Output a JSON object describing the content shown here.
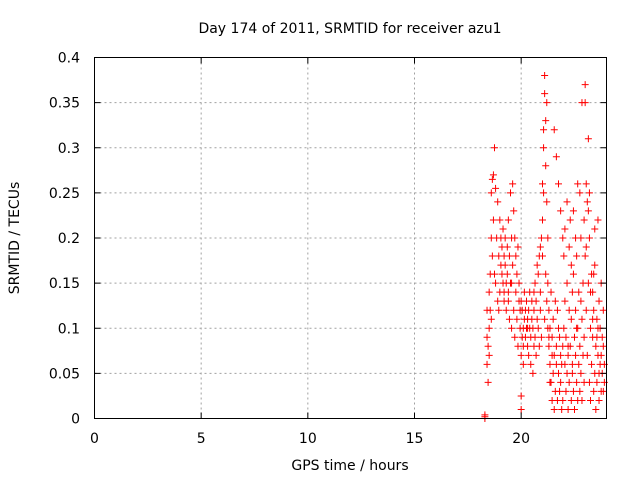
{
  "chart_data": {
    "type": "scatter",
    "title": "Day 174 of 2011, SRMTID for receiver azu1",
    "xlabel": "GPS time / hours",
    "ylabel": "SRMTID / TECUs",
    "xlim": [
      0,
      24
    ],
    "ylim": [
      0,
      0.4
    ],
    "xticks": [
      "0",
      "5",
      "10",
      "15",
      "20"
    ],
    "yticks": [
      "0",
      "0.05",
      "0.1",
      "0.15",
      "0.2",
      "0.25",
      "0.3",
      "0.35",
      "0.4"
    ],
    "grid": true,
    "marker": "plus",
    "color": "#ff0000",
    "series": [
      {
        "name": "azu1",
        "x": [
          18.3,
          18.3,
          18.3,
          18.4,
          18.4,
          18.4,
          18.45,
          18.45,
          18.5,
          18.5,
          18.5,
          18.55,
          18.55,
          18.6,
          18.6,
          18.65,
          18.65,
          18.7,
          18.7,
          18.75,
          18.8,
          18.8,
          18.85,
          18.9,
          18.9,
          18.95,
          19.0,
          19.0,
          19.05,
          19.05,
          19.1,
          19.1,
          19.15,
          19.15,
          19.2,
          19.2,
          19.25,
          19.25,
          19.3,
          19.3,
          19.35,
          19.35,
          19.4,
          19.4,
          19.45,
          19.45,
          19.5,
          19.5,
          19.55,
          19.55,
          19.6,
          19.6,
          19.65,
          19.65,
          19.7,
          19.7,
          19.75,
          19.75,
          19.8,
          19.8,
          19.85,
          19.85,
          19.9,
          19.9,
          19.95,
          19.95,
          18.6,
          18.75,
          18.95,
          19.2,
          19.4,
          19.55,
          20.0,
          20.0,
          20.0,
          20.05,
          20.05,
          20.1,
          20.1,
          20.1,
          20.15,
          20.15,
          20.2,
          20.2,
          20.25,
          20.25,
          20.3,
          20.3,
          20.35,
          20.35,
          20.4,
          20.4,
          20.45,
          20.45,
          20.5,
          20.5,
          20.55,
          20.55,
          20.6,
          20.6,
          20.65,
          20.65,
          20.7,
          20.7,
          20.75,
          20.75,
          20.8,
          20.8,
          20.85,
          20.85,
          20.9,
          20.9,
          20.95,
          20.95,
          20.0,
          20.3,
          20.6,
          20.9,
          21.0,
          21.0,
          21.0,
          21.05,
          21.05,
          21.1,
          21.1,
          21.15,
          21.15,
          21.2,
          21.2,
          21.25,
          21.25,
          21.3,
          21.3,
          21.35,
          21.35,
          21.4,
          21.4,
          21.45,
          21.45,
          21.5,
          21.5,
          21.55,
          21.55,
          21.6,
          21.6,
          21.65,
          21.65,
          21.7,
          21.7,
          21.75,
          21.75,
          21.8,
          21.8,
          21.85,
          21.85,
          21.9,
          21.9,
          21.95,
          21.95,
          21.05,
          21.15,
          21.25,
          21.35,
          21.45,
          21.55,
          21.65,
          21.75,
          21.85,
          21.95,
          21.1,
          21.2,
          21.3,
          22.0,
          22.0,
          22.05,
          22.05,
          22.1,
          22.1,
          22.15,
          22.15,
          22.2,
          22.2,
          22.25,
          22.25,
          22.3,
          22.3,
          22.35,
          22.35,
          22.4,
          22.4,
          22.45,
          22.45,
          22.5,
          22.5,
          22.55,
          22.55,
          22.6,
          22.6,
          22.65,
          22.65,
          22.7,
          22.7,
          22.75,
          22.75,
          22.8,
          22.8,
          22.85,
          22.85,
          22.9,
          22.9,
          22.95,
          22.95,
          22.05,
          22.15,
          22.25,
          22.35,
          22.45,
          22.55,
          22.65,
          22.75,
          22.85,
          22.95,
          22.2,
          22.4,
          22.6,
          22.8,
          23.0,
          23.0,
          23.0,
          23.05,
          23.05,
          23.1,
          23.1,
          23.15,
          23.15,
          23.2,
          23.2,
          23.25,
          23.25,
          23.3,
          23.3,
          23.35,
          23.35,
          23.4,
          23.4,
          23.45,
          23.45,
          23.5,
          23.5,
          23.55,
          23.55,
          23.6,
          23.6,
          23.65,
          23.65,
          23.7,
          23.7,
          23.75,
          23.75,
          23.8,
          23.8,
          23.85,
          23.85,
          23.9,
          23.9,
          23.05,
          23.15,
          23.25,
          23.35,
          23.45,
          23.55,
          23.65,
          23.75,
          23.85,
          23.2,
          23.4,
          23.6
        ],
        "y": [
          0.0,
          0.002,
          0.004,
          0.06,
          0.09,
          0.12,
          0.04,
          0.08,
          0.1,
          0.14,
          0.07,
          0.16,
          0.12,
          0.2,
          0.25,
          0.265,
          0.18,
          0.27,
          0.22,
          0.3,
          0.255,
          0.15,
          0.2,
          0.24,
          0.13,
          0.18,
          0.22,
          0.14,
          0.17,
          0.2,
          0.16,
          0.19,
          0.15,
          0.21,
          0.18,
          0.13,
          0.17,
          0.2,
          0.15,
          0.12,
          0.19,
          0.16,
          0.22,
          0.14,
          0.18,
          0.11,
          0.25,
          0.15,
          0.2,
          0.1,
          0.26,
          0.17,
          0.23,
          0.12,
          0.2,
          0.09,
          0.18,
          0.14,
          0.16,
          0.11,
          0.19,
          0.08,
          0.15,
          0.13,
          0.12,
          0.1,
          0.11,
          0.16,
          0.12,
          0.14,
          0.13,
          0.15,
          0.01,
          0.025,
          0.07,
          0.09,
          0.12,
          0.08,
          0.1,
          0.06,
          0.11,
          0.14,
          0.09,
          0.12,
          0.1,
          0.13,
          0.08,
          0.11,
          0.12,
          0.07,
          0.1,
          0.14,
          0.09,
          0.06,
          0.11,
          0.13,
          0.05,
          0.1,
          0.08,
          0.12,
          0.09,
          0.15,
          0.13,
          0.07,
          0.11,
          0.17,
          0.16,
          0.1,
          0.18,
          0.08,
          0.14,
          0.12,
          0.2,
          0.09,
          0.13,
          0.1,
          0.14,
          0.19,
          0.18,
          0.22,
          0.26,
          0.3,
          0.32,
          0.36,
          0.38,
          0.28,
          0.33,
          0.24,
          0.35,
          0.2,
          0.15,
          0.12,
          0.08,
          0.1,
          0.06,
          0.14,
          0.04,
          0.09,
          0.02,
          0.11,
          0.05,
          0.07,
          0.01,
          0.13,
          0.03,
          0.08,
          0.06,
          0.12,
          0.02,
          0.1,
          0.05,
          0.09,
          0.03,
          0.07,
          0.04,
          0.06,
          0.01,
          0.08,
          0.02,
          0.25,
          0.16,
          0.1,
          0.04,
          0.07,
          0.32,
          0.29,
          0.26,
          0.23,
          0.2,
          0.11,
          0.13,
          0.09,
          0.18,
          0.1,
          0.06,
          0.13,
          0.03,
          0.09,
          0.15,
          0.05,
          0.01,
          0.07,
          0.12,
          0.04,
          0.22,
          0.08,
          0.02,
          0.11,
          0.06,
          0.14,
          0.03,
          0.16,
          0.09,
          0.01,
          0.07,
          0.12,
          0.04,
          0.18,
          0.1,
          0.02,
          0.06,
          0.14,
          0.03,
          0.08,
          0.2,
          0.05,
          0.11,
          0.02,
          0.07,
          0.15,
          0.04,
          0.09,
          0.21,
          0.24,
          0.19,
          0.17,
          0.23,
          0.2,
          0.26,
          0.25,
          0.35,
          0.22,
          0.08,
          0.05,
          0.1,
          0.13,
          0.37,
          0.35,
          0.18,
          0.26,
          0.12,
          0.24,
          0.07,
          0.31,
          0.15,
          0.04,
          0.2,
          0.1,
          0.02,
          0.16,
          0.06,
          0.14,
          0.09,
          0.03,
          0.12,
          0.05,
          0.17,
          0.08,
          0.01,
          0.11,
          0.04,
          0.22,
          0.07,
          0.13,
          0.02,
          0.1,
          0.06,
          0.15,
          0.03,
          0.09,
          0.05,
          0.12,
          0.08,
          0.04,
          0.06,
          0.19,
          0.23,
          0.14,
          0.11,
          0.21,
          0.09,
          0.05,
          0.07,
          0.03,
          0.25,
          0.16,
          0.1
        ]
      }
    ]
  }
}
